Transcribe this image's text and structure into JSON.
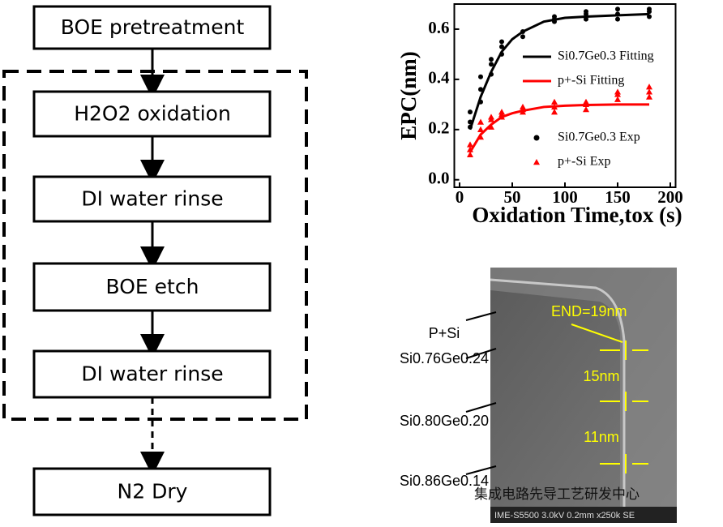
{
  "flowchart": {
    "steps": [
      "BOE pretreatment",
      "H2O2 oxidation",
      "DI water rinse",
      "BOE etch",
      "DI water rinse",
      "N2 Dry"
    ]
  },
  "chart_data": {
    "type": "scatter",
    "y_label": "EPC(nm)",
    "x_label": "Oxidation Time,tox (s)",
    "xlim": [
      -5,
      205
    ],
    "xticks": [
      0,
      50,
      100,
      150,
      200
    ],
    "ylim": [
      -0.03,
      0.7
    ],
    "yticks": [
      {
        "value": 0,
        "label": "0.0"
      },
      0.2,
      0.4,
      0.6
    ],
    "series": [
      {
        "name": "Si0.7Ge0.3 Fitting",
        "color": "#000000",
        "kind": "line",
        "x": [
          10,
          20,
          30,
          40,
          50,
          60,
          80,
          100,
          120,
          150,
          180
        ],
        "values": [
          0.2,
          0.33,
          0.43,
          0.51,
          0.56,
          0.59,
          0.63,
          0.645,
          0.65,
          0.655,
          0.66
        ]
      },
      {
        "name": "p+-Si Fitting",
        "color": "#ff0000",
        "kind": "line",
        "x": [
          10,
          20,
          30,
          40,
          50,
          60,
          80,
          100,
          120,
          150,
          180
        ],
        "values": [
          0.11,
          0.18,
          0.22,
          0.25,
          0.265,
          0.275,
          0.29,
          0.295,
          0.298,
          0.3,
          0.3
        ]
      },
      {
        "name": "Si0.7Ge0.3 Exp",
        "color": "#000000",
        "kind": "circle",
        "x": [
          10,
          10,
          10,
          20,
          20,
          20,
          30,
          30,
          30,
          40,
          40,
          40,
          60,
          60,
          90,
          90,
          90,
          120,
          120,
          120,
          150,
          150,
          150,
          180,
          180,
          180
        ],
        "values": [
          0.21,
          0.23,
          0.27,
          0.31,
          0.36,
          0.41,
          0.42,
          0.46,
          0.48,
          0.5,
          0.53,
          0.55,
          0.57,
          0.59,
          0.63,
          0.64,
          0.65,
          0.64,
          0.66,
          0.67,
          0.64,
          0.66,
          0.68,
          0.65,
          0.67,
          0.68
        ]
      },
      {
        "name": "p+-Si Exp",
        "color": "#ff0000",
        "kind": "triangle",
        "x": [
          10,
          10,
          10,
          20,
          20,
          20,
          30,
          30,
          30,
          40,
          40,
          40,
          60,
          60,
          60,
          90,
          90,
          90,
          120,
          120,
          120,
          150,
          150,
          150,
          180,
          180,
          180
        ],
        "values": [
          0.1,
          0.12,
          0.14,
          0.17,
          0.2,
          0.23,
          0.21,
          0.24,
          0.25,
          0.25,
          0.26,
          0.27,
          0.27,
          0.28,
          0.29,
          0.27,
          0.29,
          0.31,
          0.28,
          0.3,
          0.31,
          0.32,
          0.34,
          0.35,
          0.33,
          0.35,
          0.37
        ]
      }
    ]
  },
  "sem_image": {
    "layers": [
      "P+Si",
      "Si0.76Ge0.24",
      "Si0.80Ge0.20",
      "Si0.86Ge0.14"
    ],
    "widths": [
      "END=19nm",
      "15nm",
      "11nm"
    ],
    "caption": "IME-S5500 3.0kV 0.2mm x250k SE",
    "watermark": "集成电路先导工艺研发中心"
  }
}
